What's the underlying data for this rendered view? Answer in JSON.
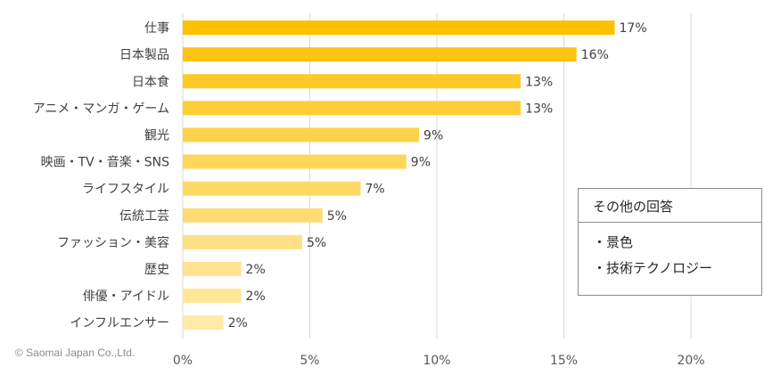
{
  "chart_data": {
    "type": "bar",
    "orientation": "horizontal",
    "categories": [
      "仕事",
      "日本製品",
      "日本食",
      "アニメ・マンガ・ゲーム",
      "観光",
      "映画・TV・音楽・SNS",
      "ライフスタイル",
      "伝統工芸",
      "ファッション・美容",
      "歴史",
      "俳優・アイドル",
      "インフルエンサー"
    ],
    "values": [
      17,
      16,
      13,
      13,
      9,
      9,
      7,
      5,
      5,
      2,
      2,
      2
    ],
    "plotted_values": [
      17.0,
      15.5,
      13.3,
      13.3,
      9.3,
      8.8,
      7.0,
      5.5,
      4.7,
      2.3,
      2.3,
      1.6
    ],
    "data_labels": [
      "17%",
      "16%",
      "13%",
      "13%",
      "9%",
      "9%",
      "7%",
      "5%",
      "5%",
      "2%",
      "2%",
      "2%"
    ],
    "bar_colors": [
      "#FFC000",
      "#FFC414",
      "#FFC928",
      "#FFCD36",
      "#FFD24C",
      "#FFD55A",
      "#FFD966",
      "#FFDC73",
      "#FFE084",
      "#FFE38F",
      "#FFE699",
      "#FFEAA8"
    ],
    "xlim": [
      0,
      22.5
    ],
    "xticks": [
      0,
      5,
      10,
      15,
      20
    ],
    "xtick_labels": [
      "0%",
      "5%",
      "10%",
      "15%",
      "20%"
    ],
    "grid": true,
    "title": "",
    "xlabel": "",
    "ylabel": ""
  },
  "annotation_box": {
    "title": "その他の回答",
    "items": [
      "・景色",
      "・技術テクノロジー"
    ]
  },
  "copyright": "© Saomai Japan Co.,Ltd.",
  "colors": {
    "gridline": "#d9d9d9",
    "text": "#404040"
  }
}
